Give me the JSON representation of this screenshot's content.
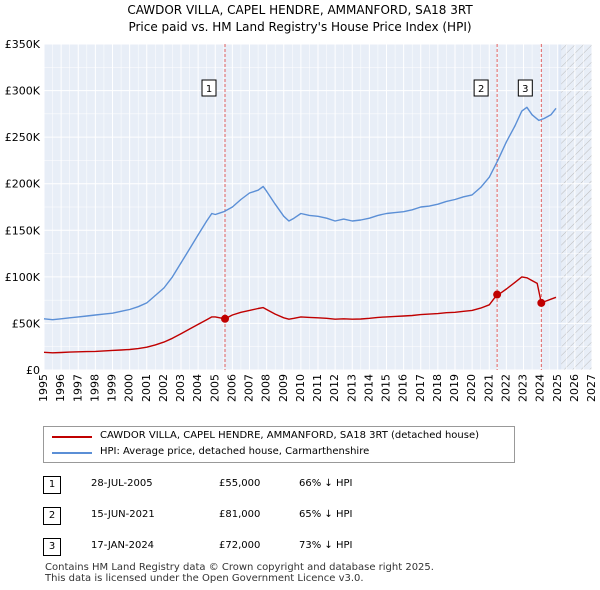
{
  "header": {
    "title_line1": "CAWDOR VILLA, CAPEL HENDRE, AMMANFORD, SA18 3RT",
    "title_line2": "Price paid vs. HM Land Registry's House Price Index (HPI)"
  },
  "legend": {
    "series1_label": "CAWDOR VILLA, CAPEL HENDRE, AMMANFORD, SA18 3RT (detached house)",
    "series2_label": "HPI: Average price, detached house, Carmarthenshire",
    "series1_color": "#c00000",
    "series2_color": "#5b8fd6"
  },
  "sales": [
    {
      "num": "1",
      "date": "28-JUL-2005",
      "price": "£55,000",
      "hpi": "66% ↓ HPI"
    },
    {
      "num": "2",
      "date": "15-JUN-2021",
      "price": "£81,000",
      "hpi": "65% ↓ HPI"
    },
    {
      "num": "3",
      "date": "17-JAN-2024",
      "price": "£72,000",
      "hpi": "73% ↓ HPI"
    }
  ],
  "footer": {
    "line1": "Contains HM Land Registry data © Crown copyright and database right 2025.",
    "line2": "This data is licensed under the Open Government Licence v3.0."
  },
  "chart_data": {
    "type": "line",
    "title": "Price paid vs. HM Land Registry's House Price Index (HPI)",
    "xlim": [
      1995,
      2027
    ],
    "ylim": [
      0,
      350000
    ],
    "x_ticks": [
      1995,
      1996,
      1997,
      1998,
      1999,
      2000,
      2001,
      2002,
      2003,
      2004,
      2005,
      2006,
      2007,
      2008,
      2009,
      2010,
      2011,
      2012,
      2013,
      2014,
      2015,
      2016,
      2017,
      2018,
      2019,
      2020,
      2021,
      2022,
      2023,
      2024,
      2025,
      2026,
      2027
    ],
    "y_ticks": [
      {
        "value": 0,
        "label": "£0"
      },
      {
        "value": 50000,
        "label": "£50K"
      },
      {
        "value": 100000,
        "label": "£100K"
      },
      {
        "value": 150000,
        "label": "£150K"
      },
      {
        "value": 200000,
        "label": "£200K"
      },
      {
        "value": 250000,
        "label": "£250K"
      },
      {
        "value": 300000,
        "label": "£300K"
      },
      {
        "value": 350000,
        "label": "£350K"
      }
    ],
    "shaded_from": 2025.0,
    "hatched_from": 2025.2,
    "series": [
      {
        "name": "HPI: Average price, detached house, Carmarthenshire",
        "color": "#5b8fd6",
        "x": [
          1995.0,
          1995.5,
          1996.0,
          1996.5,
          1997.0,
          1997.5,
          1998.0,
          1998.5,
          1999.0,
          1999.5,
          2000.0,
          2000.5,
          2001.0,
          2001.5,
          2002.0,
          2002.5,
          2003.0,
          2003.5,
          2004.0,
          2004.5,
          2004.8,
          2005.0,
          2005.5,
          2006.0,
          2006.5,
          2007.0,
          2007.5,
          2007.8,
          2008.0,
          2008.5,
          2009.0,
          2009.3,
          2009.6,
          2010.0,
          2010.5,
          2011.0,
          2011.5,
          2012.0,
          2012.5,
          2013.0,
          2013.5,
          2014.0,
          2014.5,
          2015.0,
          2015.5,
          2016.0,
          2016.5,
          2017.0,
          2017.5,
          2018.0,
          2018.5,
          2019.0,
          2019.5,
          2020.0,
          2020.5,
          2021.0,
          2021.5,
          2022.0,
          2022.5,
          2022.9,
          2023.2,
          2023.5,
          2023.9,
          2024.2,
          2024.6,
          2024.9
        ],
        "y": [
          55000,
          54000,
          55000,
          56000,
          57000,
          58000,
          59000,
          60000,
          61000,
          63000,
          65000,
          68000,
          72000,
          80000,
          88000,
          100000,
          115000,
          130000,
          145000,
          160000,
          168000,
          167000,
          170000,
          175000,
          183000,
          190000,
          193000,
          197000,
          192000,
          178000,
          165000,
          160000,
          163000,
          168000,
          166000,
          165000,
          163000,
          160000,
          162000,
          160000,
          161000,
          163000,
          166000,
          168000,
          169000,
          170000,
          172000,
          175000,
          176000,
          178000,
          181000,
          183000,
          186000,
          188000,
          196000,
          207000,
          225000,
          245000,
          262000,
          278000,
          282000,
          274000,
          268000,
          270000,
          274000,
          281000
        ]
      },
      {
        "name": "CAWDOR VILLA, CAPEL HENDRE, AMMANFORD, SA18 3RT (detached house)",
        "color": "#c00000",
        "x": [
          1995.0,
          1995.5,
          1996.0,
          1996.5,
          1997.0,
          1997.5,
          1998.0,
          1998.5,
          1999.0,
          1999.5,
          2000.0,
          2000.5,
          2001.0,
          2001.5,
          2002.0,
          2002.5,
          2003.0,
          2003.5,
          2004.0,
          2004.5,
          2004.8,
          2005.0,
          2005.57,
          2006.0,
          2006.5,
          2007.0,
          2007.5,
          2007.8,
          2008.0,
          2008.5,
          2009.0,
          2009.3,
          2009.6,
          2010.0,
          2010.5,
          2011.0,
          2011.5,
          2012.0,
          2012.5,
          2013.0,
          2013.5,
          2014.0,
          2014.5,
          2015.0,
          2015.5,
          2016.0,
          2016.5,
          2017.0,
          2017.5,
          2018.0,
          2018.5,
          2019.0,
          2019.5,
          2020.0,
          2020.5,
          2021.0,
          2021.46,
          2021.7,
          2022.0,
          2022.5,
          2022.9,
          2023.2,
          2023.5,
          2023.8,
          2024.04,
          2024.3,
          2024.6,
          2024.9
        ],
        "y": [
          19000,
          18500,
          18800,
          19200,
          19500,
          19800,
          20000,
          20500,
          21000,
          21500,
          22000,
          23000,
          24500,
          27000,
          30000,
          34000,
          39000,
          44000,
          49000,
          54000,
          57000,
          57000,
          55000,
          59000,
          62000,
          64000,
          66000,
          67000,
          65000,
          60000,
          56000,
          54500,
          55500,
          57000,
          56500,
          56000,
          55500,
          54500,
          55000,
          54500,
          54800,
          55500,
          56500,
          57000,
          57500,
          58000,
          58500,
          59500,
          60000,
          60500,
          61500,
          62000,
          63000,
          64000,
          66500,
          70000,
          81000,
          83000,
          87000,
          94000,
          100000,
          99000,
          96000,
          93000,
          72000,
          74000,
          76000,
          78000
        ]
      }
    ],
    "markers": [
      {
        "label": "1",
        "x": 2005.57,
        "y": 55000
      },
      {
        "label": "2",
        "x": 2021.46,
        "y": 81000
      },
      {
        "label": "3",
        "x": 2024.04,
        "y": 72000
      }
    ]
  }
}
